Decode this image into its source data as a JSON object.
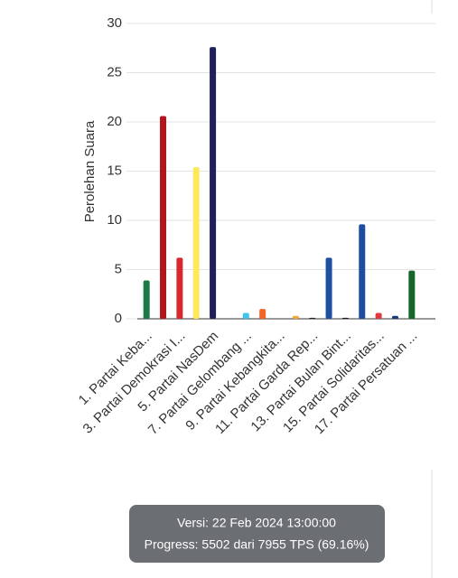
{
  "chart_data": {
    "type": "bar",
    "y_label": "Perolehan Suara",
    "categories": [
      "1. Partai Keba...",
      null,
      "3. Partai Demokrasi I...",
      null,
      "5. Partai NasDem",
      null,
      "7. Partai Gelombang ...",
      null,
      "9. Partai Kebangkita...",
      null,
      "11. Partai Garda Rep...",
      null,
      "13. Partai Bulan Bint...",
      null,
      "15. Partai Solidaritas...",
      null,
      "17. Partai Persatuan ..."
    ],
    "values": [
      3.9,
      20.6,
      6.2,
      15.4,
      27.6,
      0,
      0.6,
      1.0,
      0,
      0.3,
      0.1,
      6.2,
      0.1,
      9.6,
      0.6,
      0.3,
      4.9
    ],
    "colors": [
      "#1b7a45",
      "#b3151d",
      "#d7282e",
      "#fde95b",
      "#1f1f5c",
      "#888888",
      "#40c3ee",
      "#f26522",
      "#888888",
      "#f2a93b",
      "#222233",
      "#1e4fa0",
      "#1a1a2a",
      "#1d4e9e",
      "#e03a3a",
      "#173b78",
      "#16662b"
    ],
    "ylim": [
      0,
      30
    ],
    "yticks": [
      0,
      5,
      10,
      15,
      20,
      25,
      30
    ],
    "grid": true,
    "tooltip": [
      "Versi: 22 Feb 2024 13:00:00",
      "Progress: 5502 dari 7955 TPS (69.16%)"
    ]
  }
}
